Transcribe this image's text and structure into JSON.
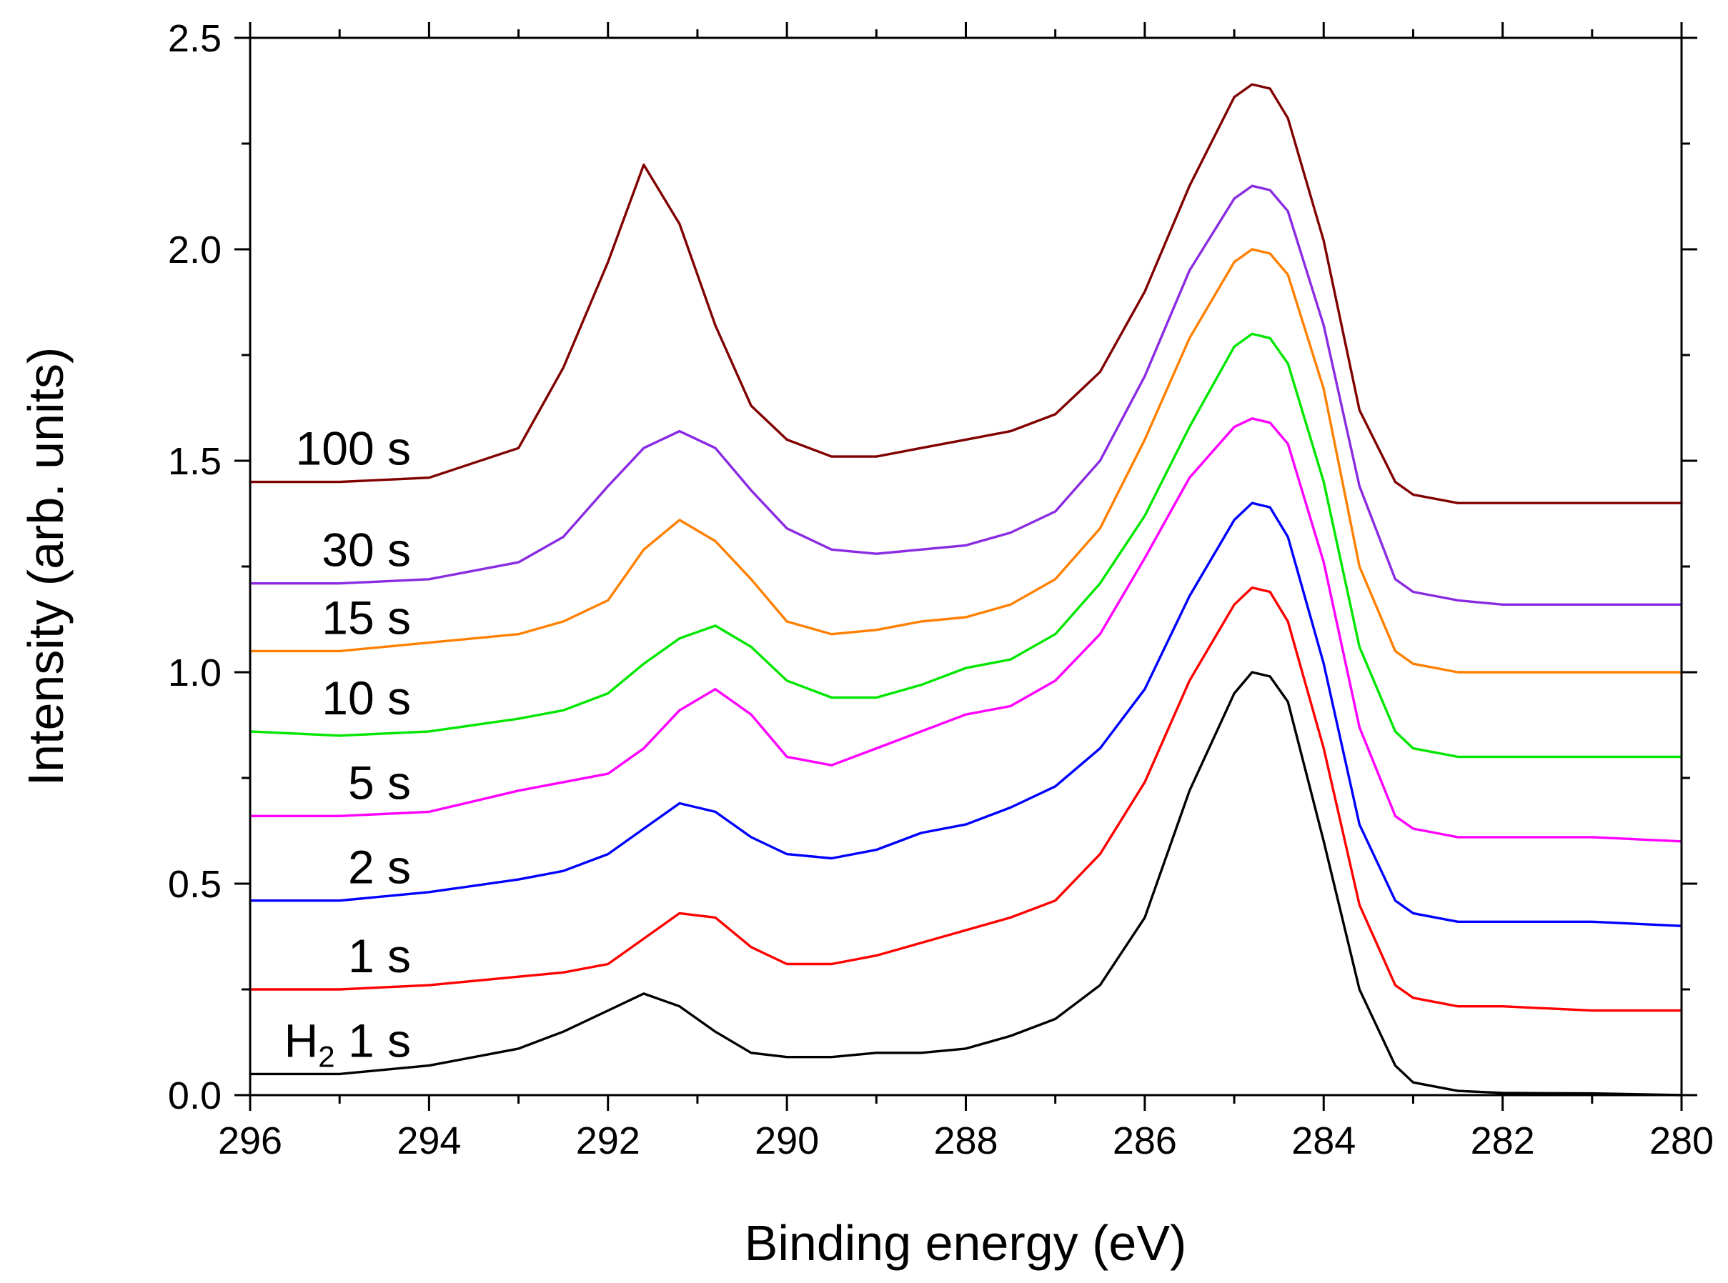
{
  "chart_data": {
    "type": "line",
    "title": "",
    "xlabel": "Binding energy (eV)",
    "ylabel": "Intensity (arb. units)",
    "xlim": [
      296,
      280
    ],
    "ylim": [
      0,
      2.5
    ],
    "x_ticks": [
      "296",
      "294",
      "292",
      "290",
      "288",
      "286",
      "284",
      "282",
      "280"
    ],
    "y_ticks": [
      "0.0",
      "0.5",
      "1.0",
      "1.5",
      "2.0",
      "2.5"
    ],
    "x": [
      296,
      295,
      294,
      293,
      292.5,
      292,
      291.6,
      291.2,
      290.8,
      290.4,
      290,
      289.5,
      289,
      288.5,
      288,
      287.5,
      287,
      286.5,
      286,
      285.5,
      285,
      284.8,
      284.6,
      284.4,
      284,
      283.6,
      283.2,
      283,
      282.5,
      282,
      281,
      280
    ],
    "series": [
      {
        "name": "H2 1 s",
        "label_main": "H",
        "label_sub": "2",
        "label_rest": " 1 s",
        "color": "#000000",
        "values": [
          0.05,
          0.05,
          0.07,
          0.11,
          0.15,
          0.2,
          0.24,
          0.21,
          0.15,
          0.1,
          0.09,
          0.09,
          0.1,
          0.1,
          0.11,
          0.14,
          0.18,
          0.26,
          0.42,
          0.72,
          0.95,
          1.0,
          0.99,
          0.93,
          0.6,
          0.25,
          0.07,
          0.03,
          0.01,
          0.005,
          0.004,
          0.0
        ]
      },
      {
        "name": "1 s",
        "label_main": "1 s",
        "label_sub": "",
        "label_rest": "",
        "color": "#ff0000",
        "values": [
          0.25,
          0.25,
          0.26,
          0.28,
          0.29,
          0.31,
          0.37,
          0.43,
          0.42,
          0.35,
          0.31,
          0.31,
          0.33,
          0.36,
          0.39,
          0.42,
          0.46,
          0.57,
          0.74,
          0.98,
          1.16,
          1.2,
          1.19,
          1.12,
          0.82,
          0.45,
          0.26,
          0.23,
          0.21,
          0.21,
          0.2,
          0.2
        ]
      },
      {
        "name": "2 s",
        "label_main": "2 s",
        "label_sub": "",
        "label_rest": "",
        "color": "#0000ff",
        "values": [
          0.46,
          0.46,
          0.48,
          0.51,
          0.53,
          0.57,
          0.63,
          0.69,
          0.67,
          0.61,
          0.57,
          0.56,
          0.58,
          0.62,
          0.64,
          0.68,
          0.73,
          0.82,
          0.96,
          1.18,
          1.36,
          1.4,
          1.39,
          1.32,
          1.02,
          0.64,
          0.46,
          0.43,
          0.41,
          0.41,
          0.41,
          0.4
        ]
      },
      {
        "name": "5 s",
        "label_main": "5 s",
        "label_sub": "",
        "label_rest": "",
        "color": "#ff00ff",
        "values": [
          0.66,
          0.66,
          0.67,
          0.72,
          0.74,
          0.76,
          0.82,
          0.91,
          0.96,
          0.9,
          0.8,
          0.78,
          0.82,
          0.86,
          0.9,
          0.92,
          0.98,
          1.09,
          1.27,
          1.46,
          1.58,
          1.6,
          1.59,
          1.54,
          1.26,
          0.87,
          0.66,
          0.63,
          0.61,
          0.61,
          0.61,
          0.6
        ]
      },
      {
        "name": "10 s",
        "label_main": "10 s",
        "label_sub": "",
        "label_rest": "",
        "color": "#00e600",
        "values": [
          0.86,
          0.85,
          0.86,
          0.89,
          0.91,
          0.95,
          1.02,
          1.08,
          1.11,
          1.06,
          0.98,
          0.94,
          0.94,
          0.97,
          1.01,
          1.03,
          1.09,
          1.21,
          1.37,
          1.58,
          1.77,
          1.8,
          1.79,
          1.73,
          1.45,
          1.06,
          0.86,
          0.82,
          0.8,
          0.8,
          0.8,
          0.8
        ]
      },
      {
        "name": "15 s",
        "label_main": "15 s",
        "label_sub": "",
        "label_rest": "",
        "color": "#ff8000",
        "values": [
          1.05,
          1.05,
          1.07,
          1.09,
          1.12,
          1.17,
          1.29,
          1.36,
          1.31,
          1.22,
          1.12,
          1.09,
          1.1,
          1.12,
          1.13,
          1.16,
          1.22,
          1.34,
          1.55,
          1.79,
          1.97,
          2.0,
          1.99,
          1.94,
          1.67,
          1.25,
          1.05,
          1.02,
          1.0,
          1.0,
          1.0,
          1.0
        ]
      },
      {
        "name": "30 s",
        "label_main": "30 s",
        "label_sub": "",
        "label_rest": "",
        "color": "#8a2be2",
        "values": [
          1.21,
          1.21,
          1.22,
          1.26,
          1.32,
          1.44,
          1.53,
          1.57,
          1.53,
          1.43,
          1.34,
          1.29,
          1.28,
          1.29,
          1.3,
          1.33,
          1.38,
          1.5,
          1.7,
          1.95,
          2.12,
          2.15,
          2.14,
          2.09,
          1.82,
          1.44,
          1.22,
          1.19,
          1.17,
          1.16,
          1.16,
          1.16
        ]
      },
      {
        "name": "100 s",
        "label_main": "100 s",
        "label_sub": "",
        "label_rest": "",
        "color": "#800000",
        "values": [
          1.45,
          1.45,
          1.46,
          1.53,
          1.72,
          1.97,
          2.2,
          2.06,
          1.82,
          1.63,
          1.55,
          1.51,
          1.51,
          1.53,
          1.55,
          1.57,
          1.61,
          1.71,
          1.9,
          2.15,
          2.36,
          2.39,
          2.38,
          2.31,
          2.02,
          1.62,
          1.45,
          1.42,
          1.4,
          1.4,
          1.4,
          1.4
        ]
      }
    ]
  }
}
